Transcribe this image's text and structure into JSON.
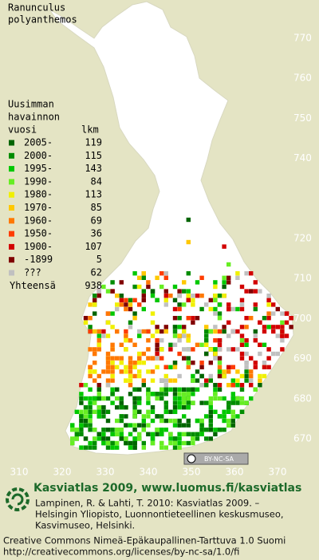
{
  "title": [
    "Ranunculus",
    "polyanthemos"
  ],
  "legend": {
    "heading": [
      "Uusimman",
      "havainnon",
      "vuosi"
    ],
    "count_heading": "lkm",
    "rows": [
      {
        "label": "2005-",
        "count": 119,
        "color": "#006400"
      },
      {
        "label": "2000-",
        "count": 115,
        "color": "#008c00"
      },
      {
        "label": "1995-",
        "count": 143,
        "color": "#00c800"
      },
      {
        "label": "1990-",
        "count": 84,
        "color": "#66ee22"
      },
      {
        "label": "1980-",
        "count": 113,
        "color": "#f0f000"
      },
      {
        "label": "1970-",
        "count": 85,
        "color": "#ffc800"
      },
      {
        "label": "1960-",
        "count": 69,
        "color": "#ff7800"
      },
      {
        "label": "1950-",
        "count": 36,
        "color": "#ff3c00"
      },
      {
        "label": "1900-",
        "count": 107,
        "color": "#d20000"
      },
      {
        "label": "-1899",
        "count": 5,
        "color": "#800000"
      },
      {
        "label": "???",
        "count": 62,
        "color": "#c0c0c0"
      }
    ],
    "total_label": "Yhteensä",
    "total": 938
  },
  "grid": {
    "northing": [
      770,
      760,
      750,
      740,
      720,
      710,
      700,
      690,
      680,
      670
    ],
    "easting": [
      310,
      320,
      330,
      340,
      350,
      360,
      370
    ]
  },
  "license_badge": "BY-NC-SA",
  "footer": {
    "heading": "Kasviatlas 2009, www.luomus.fi/kasviatlas",
    "citation": [
      "Lampinen, R. & Lahti, T. 2010: Kasviatlas 2009. –",
      "Helsingin Yliopisto, Luonnontieteellinen keskusmuseo,",
      "Kasvimuseo, Helsinki."
    ],
    "license": [
      "Creative Commons Nimeä-Epäkaupallinen-Tarttuva 1.0 Suomi",
      "http://creativecommons.org/licenses/by-nc-sa/1.0/fi"
    ]
  }
}
